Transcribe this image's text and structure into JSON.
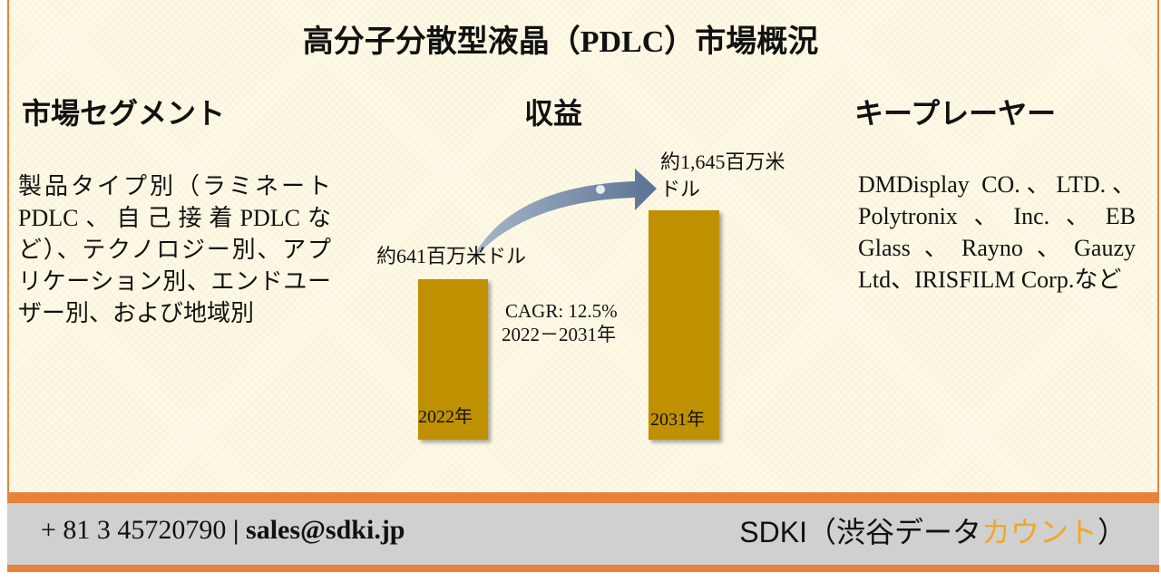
{
  "header": {
    "title": "高分子分散型液晶（PDLC）市場概況"
  },
  "columns": [
    {
      "heading": "市場セグメント",
      "body": "製品タイプ別（ラミネートPDLC、自己接着PDLCなど）、テクノロジー別、アプリケーション別、エンドユーザー別、および地域別"
    },
    {
      "heading": "収益"
    },
    {
      "heading": "キープレーヤー",
      "body": "DMDisplay CO.、LTD.、Polytronix、Inc.、EB Glass、Rayno、Gauzy Ltd、IRISFILM Corp.など"
    }
  ],
  "revenue": {
    "start": {
      "label": "約641百万米ドル",
      "year": "2022年"
    },
    "end": {
      "label": "約1,645百万米ドル",
      "year": "2031年"
    },
    "cagr": "CAGR: 12.5%",
    "period": "2022－2031年"
  },
  "footer": {
    "phone": "+ 81 3 45720790",
    "separator": "|",
    "email": "sales@sdki.jp",
    "brand": [
      "SDKI（渋谷データ",
      "カウント",
      "）"
    ]
  }
}
